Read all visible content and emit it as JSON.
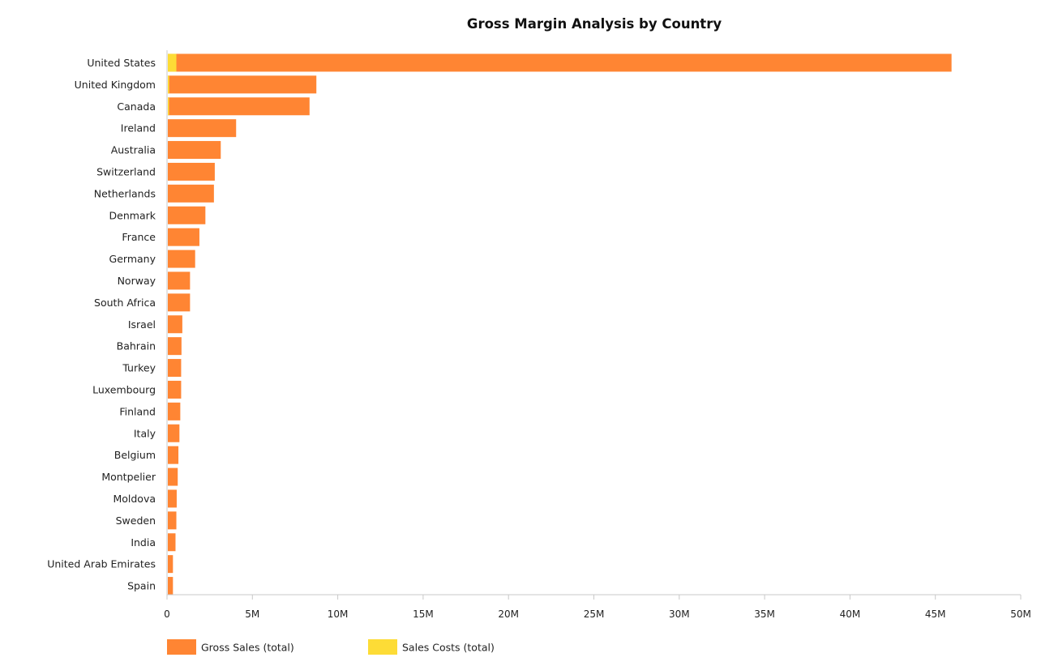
{
  "chart_data": {
    "type": "bar",
    "orientation": "horizontal",
    "title": "Gross Margin Analysis by Country",
    "xlabel": "",
    "ylabel": "",
    "xlim": [
      0,
      50000000
    ],
    "x_ticks": [
      0,
      5000000,
      10000000,
      15000000,
      20000000,
      25000000,
      30000000,
      35000000,
      40000000,
      45000000,
      50000000
    ],
    "x_tick_labels": [
      "0",
      "5M",
      "10M",
      "15M",
      "20M",
      "25M",
      "30M",
      "35M",
      "40M",
      "45M",
      "50M"
    ],
    "grid": false,
    "legend_position": "bottom-left",
    "categories": [
      "United States",
      "United Kingdom",
      "Canada",
      "Ireland",
      "Australia",
      "Switzerland",
      "Netherlands",
      "Denmark",
      "France",
      "Germany",
      "Norway",
      "South Africa",
      "Israel",
      "Bahrain",
      "Turkey",
      "Luxembourg",
      "Finland",
      "Italy",
      "Belgium",
      "Montpelier",
      "Moldova",
      "Sweden",
      "India",
      "United Arab Emirates",
      "Spain"
    ],
    "series": [
      {
        "name": "Gross Sales (total)",
        "color": "#ff8533",
        "values": [
          45900000,
          8700000,
          8300000,
          4000000,
          3100000,
          2750000,
          2700000,
          2200000,
          1850000,
          1600000,
          1300000,
          1300000,
          850000,
          800000,
          780000,
          780000,
          730000,
          680000,
          620000,
          580000,
          520000,
          500000,
          450000,
          300000,
          300000
        ]
      },
      {
        "name": "Sales Costs (total)",
        "color": "#fddc36",
        "values": [
          500000,
          80000,
          70000,
          0,
          0,
          0,
          0,
          0,
          0,
          0,
          0,
          0,
          0,
          0,
          0,
          0,
          0,
          0,
          0,
          0,
          0,
          0,
          0,
          0,
          0
        ]
      }
    ]
  }
}
